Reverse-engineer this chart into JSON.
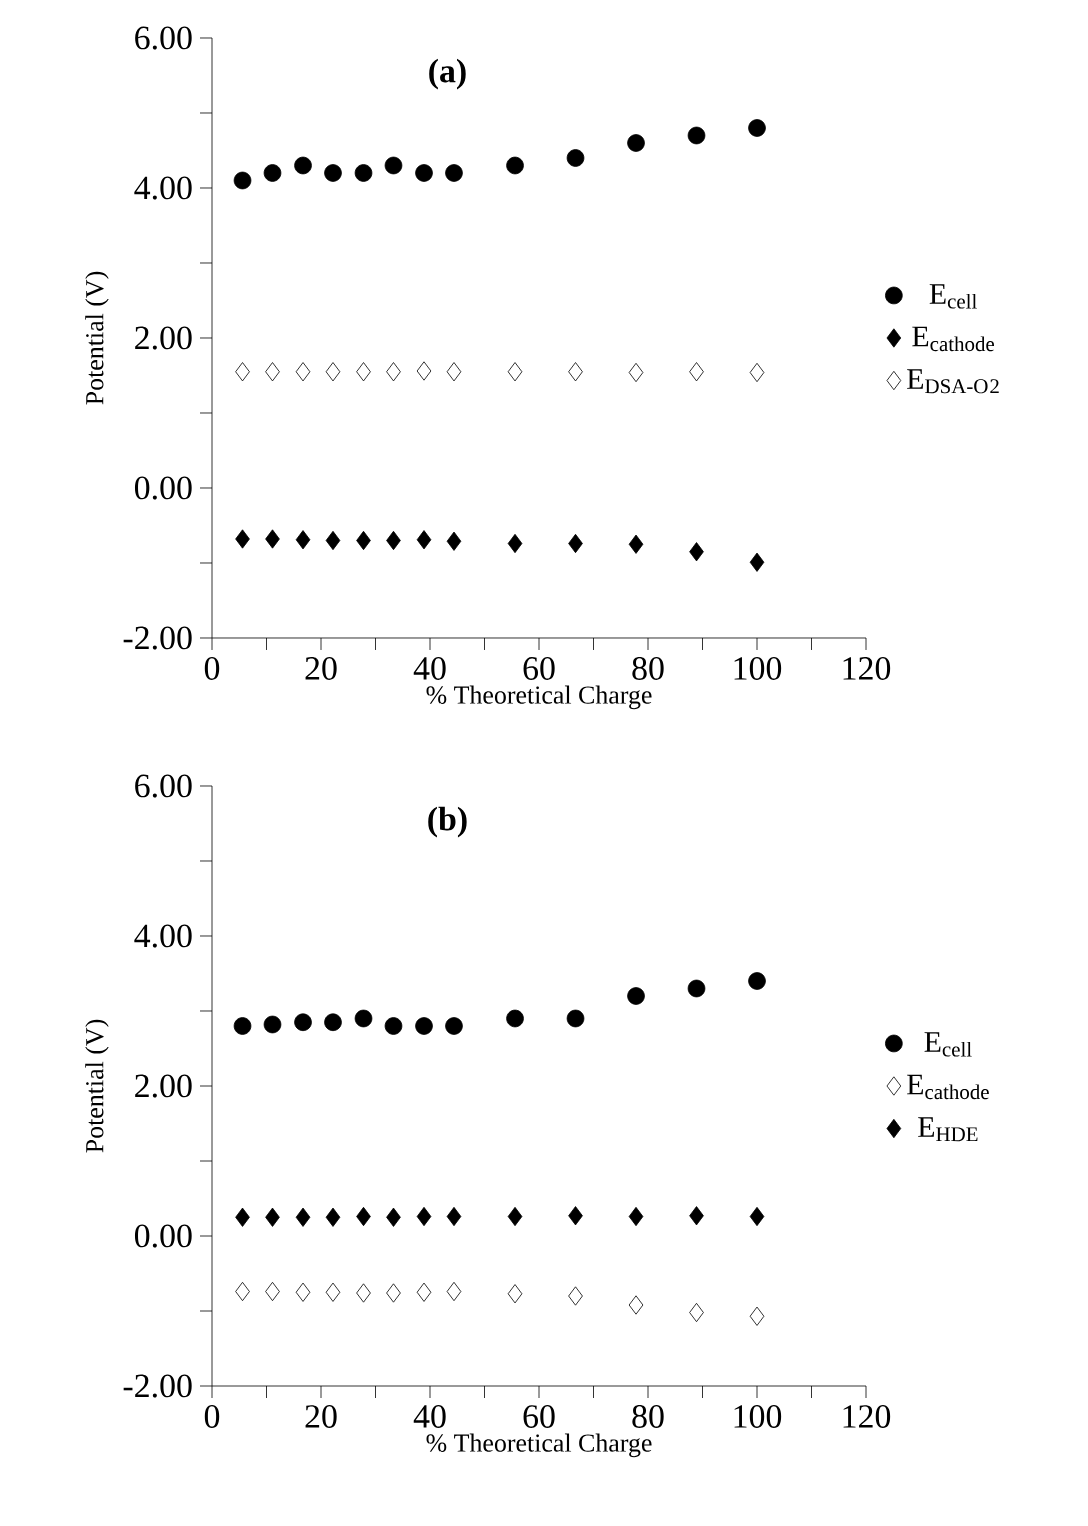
{
  "chart_data": [
    {
      "type": "scatter",
      "title": "**(a)**",
      "xlabel": "% Theoretical Charge",
      "ylabel": "Potential (V)",
      "x": [
        5.6,
        11.1,
        16.7,
        22.2,
        27.8,
        33.3,
        38.9,
        44.4,
        55.6,
        66.7,
        77.8,
        88.9,
        100
      ],
      "series": [
        {
          "name": "E$_{cell}$",
          "color": "#000000",
          "marker": "circle",
          "values": [
            4.1,
            4.2,
            4.3,
            4.2,
            4.2,
            4.3,
            4.2,
            4.2,
            4.3,
            4.4,
            4.6,
            4.7,
            4.8
          ]
        },
        {
          "name": "E$_{cathode}$",
          "color": "#000000",
          "marker": "diamond",
          "values": [
            -0.68,
            -0.68,
            -0.69,
            -0.7,
            -0.7,
            -0.7,
            -0.69,
            -0.71,
            -0.74,
            -0.74,
            -0.75,
            -0.85,
            -0.99
          ]
        },
        {
          "name": "E$_{DSA-O}$$_{2}$",
          "color": "#ffffff",
          "marker": "diamond",
          "values": [
            1.55,
            1.55,
            1.55,
            1.55,
            1.55,
            1.55,
            1.56,
            1.55,
            1.55,
            1.55,
            1.54,
            1.55,
            1.54
          ]
        }
      ],
      "xlim": [
        0,
        120
      ],
      "ylim": [
        -2,
        6
      ],
      "xticks": [
        0,
        {
          "value": 10,
          "label": null
        },
        20,
        {
          "value": 30,
          "label": null
        },
        40,
        {
          "value": 50,
          "label": null
        },
        60,
        {
          "value": 70,
          "label": null
        },
        80,
        {
          "value": 90,
          "label": null
        },
        100,
        {
          "value": 110,
          "label": null
        },
        120
      ],
      "yticks": [
        {
          "value": -2,
          "label": "-2.00"
        },
        {
          "value": -1,
          "label": null
        },
        {
          "value": 0,
          "label": "0.00"
        },
        {
          "value": 1,
          "label": null
        },
        {
          "value": 2,
          "label": "2.00"
        },
        {
          "value": 3,
          "label": null
        },
        {
          "value": 4,
          "label": "4.00"
        },
        {
          "value": 5,
          "label": null
        },
        {
          "value": 6,
          "label": "6.00"
        }
      ],
      "legend": "right",
      "grid": false
    },
    {
      "type": "scatter",
      "title": "**(b)**",
      "xlabel": "% Theoretical Charge",
      "ylabel": "Potential (V)",
      "x": [
        5.6,
        11.1,
        16.7,
        22.2,
        27.8,
        33.3,
        38.9,
        44.4,
        55.6,
        66.7,
        77.8,
        88.9,
        100
      ],
      "series": [
        {
          "name": "E$_{cell}$",
          "color": "#000000",
          "marker": "circle",
          "values": [
            2.8,
            2.82,
            2.85,
            2.85,
            2.9,
            2.8,
            2.8,
            2.8,
            2.9,
            2.9,
            3.2,
            3.3,
            3.4
          ]
        },
        {
          "name": "E$_{cathode}$",
          "color": "#ffffff",
          "marker": "diamond",
          "values": [
            -0.74,
            -0.74,
            -0.75,
            -0.75,
            -0.76,
            -0.76,
            -0.75,
            -0.74,
            -0.77,
            -0.8,
            -0.92,
            -1.02,
            -1.07
          ]
        },
        {
          "name": "E$_{HDE}$",
          "color": "#000000",
          "marker": "diamond",
          "values": [
            0.25,
            0.25,
            0.25,
            0.25,
            0.26,
            0.25,
            0.26,
            0.26,
            0.26,
            0.27,
            0.26,
            0.27,
            0.26
          ]
        }
      ],
      "xlim": [
        0,
        120
      ],
      "ylim": [
        -2,
        6
      ],
      "xticks": [
        0,
        {
          "value": 10,
          "label": null
        },
        20,
        {
          "value": 30,
          "label": null
        },
        40,
        {
          "value": 50,
          "label": null
        },
        60,
        {
          "value": 70,
          "label": null
        },
        80,
        {
          "value": 90,
          "label": null
        },
        100,
        {
          "value": 110,
          "label": null
        },
        120
      ],
      "yticks": [
        {
          "value": -2,
          "label": "-2.00"
        },
        {
          "value": -1,
          "label": null
        },
        {
          "value": 0,
          "label": "0.00"
        },
        {
          "value": 1,
          "label": null
        },
        {
          "value": 2,
          "label": "2.00"
        },
        {
          "value": 3,
          "label": null
        },
        {
          "value": 4,
          "label": "4.00"
        },
        {
          "value": 5,
          "label": null
        },
        {
          "value": 6,
          "label": "6.00"
        }
      ],
      "legend": "right",
      "grid": false
    }
  ]
}
